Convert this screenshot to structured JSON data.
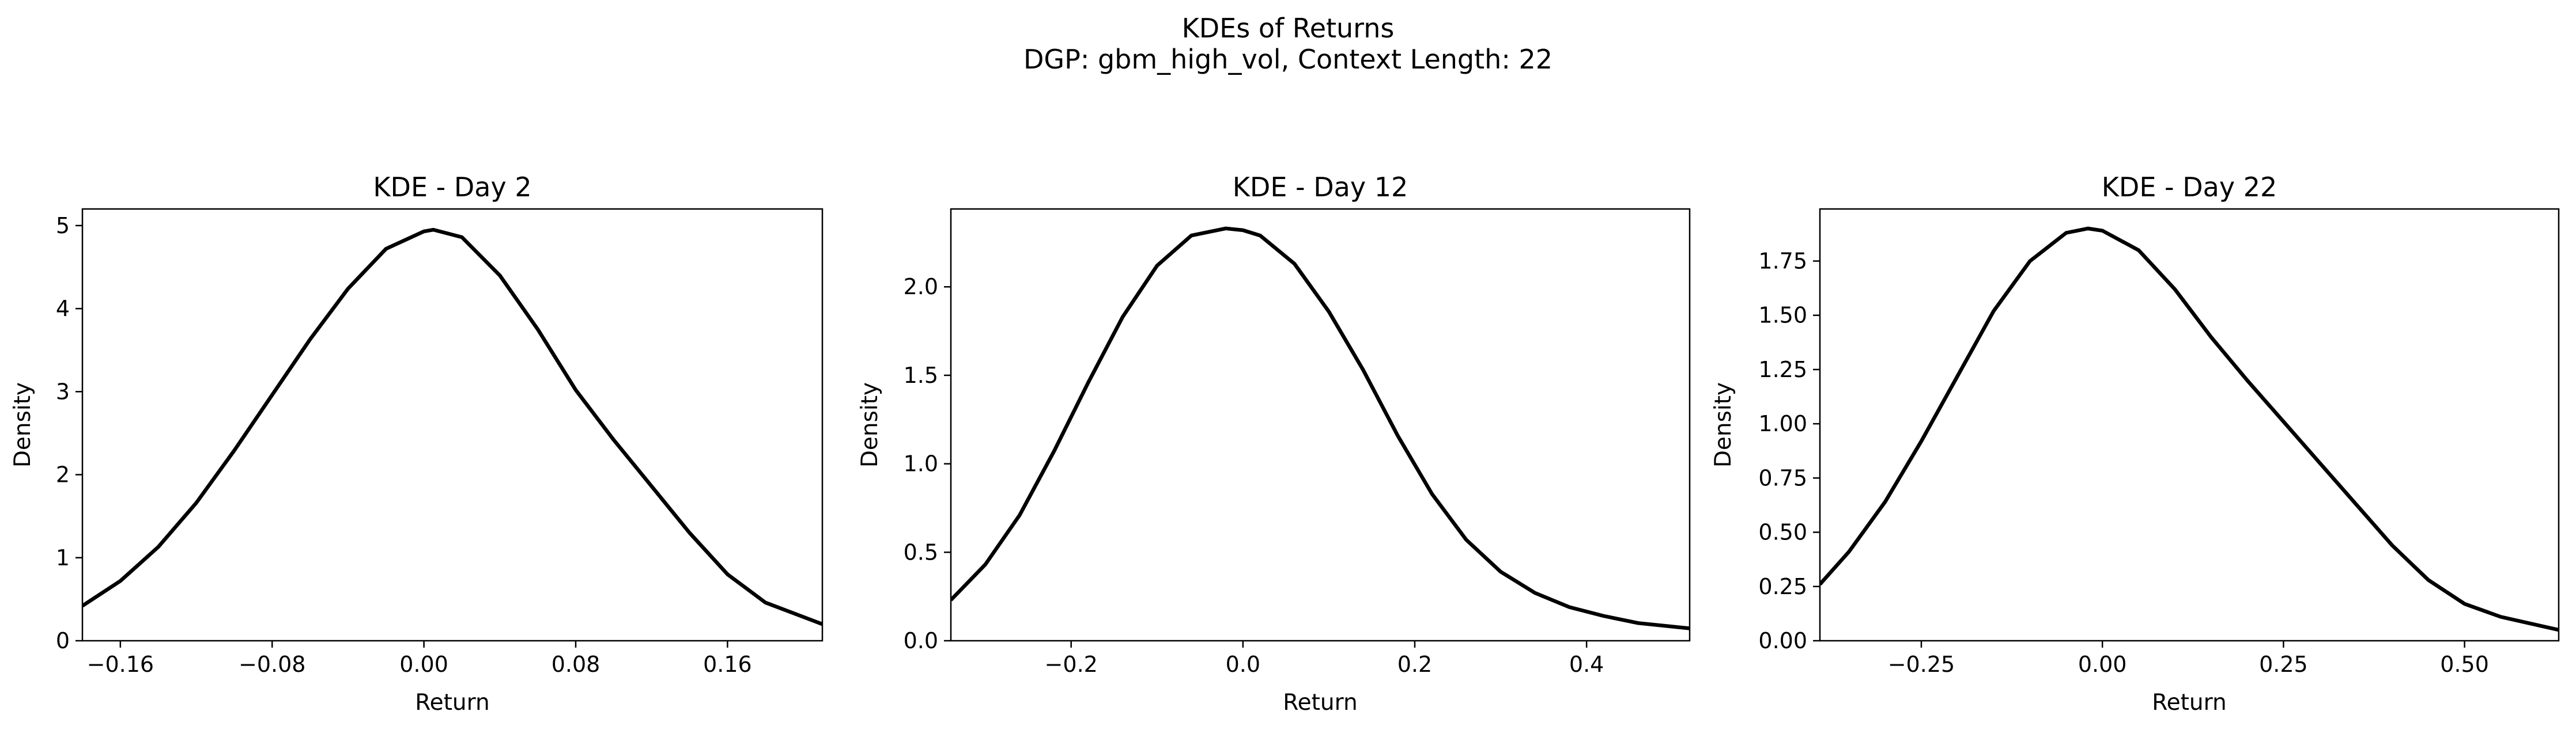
{
  "figure": {
    "title": "KDEs of Returns",
    "subtitle": "DGP: gbm_high_vol, Context Length: 22"
  },
  "chart_data": [
    {
      "type": "line",
      "title": "KDE - Day 2",
      "xlabel": "Return",
      "ylabel": "Density",
      "xlim": [
        -0.18,
        0.21
      ],
      "ylim": [
        0,
        5.2
      ],
      "xticks": [
        -0.16,
        -0.08,
        0.0,
        0.08,
        0.16
      ],
      "xtick_labels": [
        "−0.16",
        "−0.08",
        "0.00",
        "0.08",
        "0.16"
      ],
      "yticks": [
        0,
        1,
        2,
        3,
        4,
        5
      ],
      "ytick_labels": [
        "0",
        "1",
        "2",
        "3",
        "4",
        "5"
      ],
      "grid": false,
      "series": [
        {
          "color": "#000000",
          "x": [
            -0.18,
            -0.16,
            -0.14,
            -0.12,
            -0.1,
            -0.08,
            -0.06,
            -0.04,
            -0.02,
            0.0,
            0.005,
            0.02,
            0.04,
            0.06,
            0.08,
            0.1,
            0.12,
            0.14,
            0.16,
            0.18,
            0.21
          ],
          "y": [
            0.42,
            0.72,
            1.13,
            1.66,
            2.29,
            2.96,
            3.63,
            4.24,
            4.72,
            4.93,
            4.95,
            4.86,
            4.4,
            3.75,
            3.02,
            2.42,
            1.86,
            1.3,
            0.8,
            0.46,
            0.2
          ]
        }
      ]
    },
    {
      "type": "line",
      "title": "KDE - Day 12",
      "xlabel": "Return",
      "ylabel": "Density",
      "xlim": [
        -0.34,
        0.52
      ],
      "ylim": [
        0,
        2.44
      ],
      "xticks": [
        -0.2,
        0.0,
        0.2,
        0.4
      ],
      "xtick_labels": [
        "−0.2",
        "0.0",
        "0.2",
        "0.4"
      ],
      "yticks": [
        0.0,
        0.5,
        1.0,
        1.5,
        2.0
      ],
      "ytick_labels": [
        "0.0",
        "0.5",
        "1.0",
        "1.5",
        "2.0"
      ],
      "grid": false,
      "series": [
        {
          "color": "#000000",
          "x": [
            -0.34,
            -0.3,
            -0.26,
            -0.22,
            -0.18,
            -0.14,
            -0.1,
            -0.06,
            -0.02,
            0.0,
            0.02,
            0.06,
            0.1,
            0.14,
            0.18,
            0.22,
            0.26,
            0.3,
            0.34,
            0.38,
            0.42,
            0.46,
            0.52
          ],
          "y": [
            0.23,
            0.43,
            0.71,
            1.07,
            1.46,
            1.83,
            2.12,
            2.29,
            2.33,
            2.32,
            2.29,
            2.13,
            1.86,
            1.53,
            1.16,
            0.83,
            0.57,
            0.39,
            0.27,
            0.19,
            0.14,
            0.1,
            0.07
          ]
        }
      ]
    },
    {
      "type": "line",
      "title": "KDE - Day 22",
      "xlabel": "Return",
      "ylabel": "Density",
      "xlim": [
        -0.39,
        0.63
      ],
      "ylim": [
        0,
        1.99
      ],
      "xticks": [
        -0.25,
        0.0,
        0.25,
        0.5
      ],
      "xtick_labels": [
        "−0.25",
        "0.00",
        "0.25",
        "0.50"
      ],
      "yticks": [
        0.0,
        0.25,
        0.5,
        0.75,
        1.0,
        1.25,
        1.5,
        1.75
      ],
      "ytick_labels": [
        "0.00",
        "0.25",
        "0.50",
        "0.75",
        "1.00",
        "1.25",
        "1.50",
        "1.75"
      ],
      "grid": false,
      "series": [
        {
          "color": "#000000",
          "x": [
            -0.39,
            -0.35,
            -0.3,
            -0.25,
            -0.2,
            -0.15,
            -0.1,
            -0.05,
            -0.02,
            0.0,
            0.05,
            0.1,
            0.15,
            0.2,
            0.25,
            0.3,
            0.35,
            0.4,
            0.45,
            0.5,
            0.55,
            0.63
          ],
          "y": [
            0.26,
            0.41,
            0.64,
            0.92,
            1.22,
            1.52,
            1.75,
            1.88,
            1.9,
            1.89,
            1.8,
            1.62,
            1.4,
            1.2,
            1.01,
            0.82,
            0.63,
            0.44,
            0.28,
            0.17,
            0.11,
            0.05
          ]
        }
      ]
    }
  ]
}
